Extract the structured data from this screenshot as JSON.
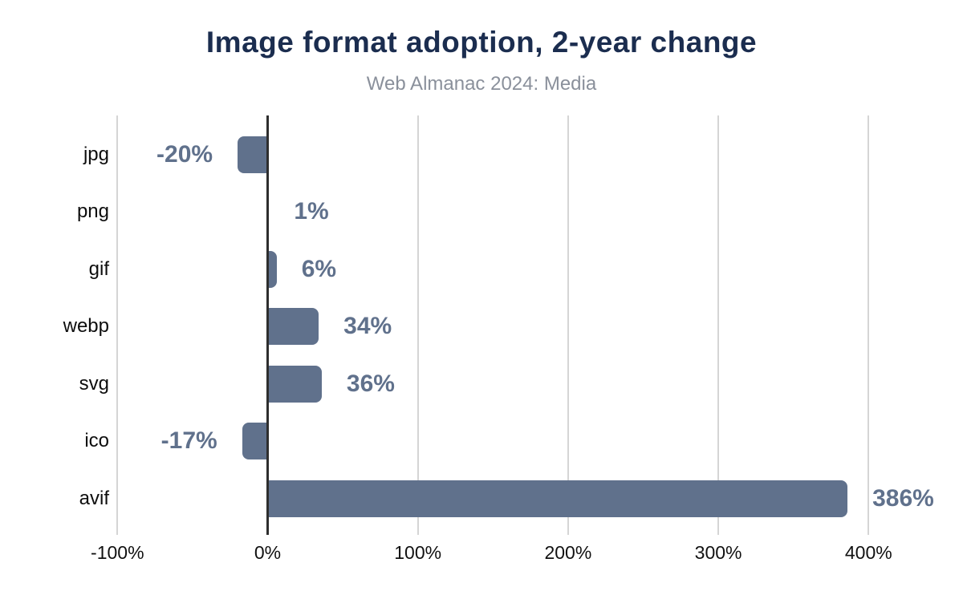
{
  "chart": {
    "colors": {
      "bar": "#60718c",
      "title": "#1b2d4f",
      "subtitle": "#8a909b",
      "grid": "#d5d5d5",
      "axis": "#2e2e2e",
      "category_label": "#0d0d0d",
      "tick_label": "#111111"
    }
  },
  "chart_data": {
    "type": "bar",
    "orientation": "horizontal",
    "title": "Image format adoption, 2-year change",
    "subtitle": "Web Almanac 2024: Media",
    "categories": [
      "jpg",
      "png",
      "gif",
      "webp",
      "svg",
      "ico",
      "avif"
    ],
    "values": [
      -20,
      1,
      6,
      34,
      36,
      -17,
      386
    ],
    "value_labels": [
      "-20%",
      "1%",
      "6%",
      "34%",
      "36%",
      "-17%",
      "386%"
    ],
    "x_ticks": [
      "-100%",
      "0%",
      "100%",
      "200%",
      "300%",
      "400%"
    ],
    "x_tick_values": [
      -100,
      0,
      100,
      200,
      300,
      400
    ],
    "xlabel": "",
    "ylabel": "",
    "xlim": [
      -100,
      410
    ],
    "grid": true,
    "legend": false,
    "value_label_position": "outside-end"
  }
}
